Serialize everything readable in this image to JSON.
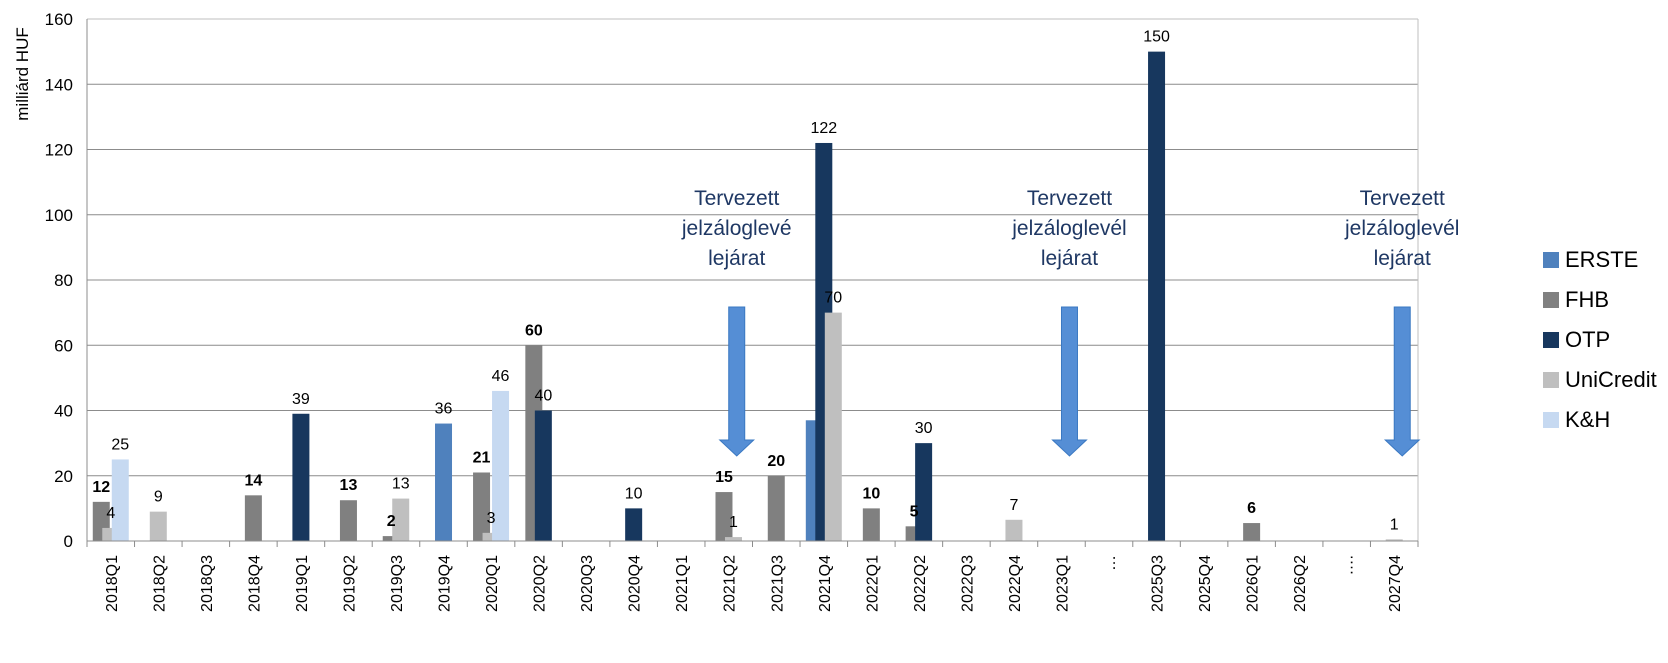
{
  "chart_data": {
    "type": "bar",
    "title": "",
    "xlabel": "",
    "ylabel": "milliárd HUF",
    "ylim": [
      0,
      160
    ],
    "yticks": [
      0,
      20,
      40,
      60,
      80,
      100,
      120,
      140,
      160
    ],
    "grid": true,
    "legend_position": "right",
    "categories": [
      "2018Q1",
      "2018Q2",
      "2018Q3",
      "2018Q4",
      "2019Q1",
      "2019Q2",
      "2019Q3",
      "2019Q4",
      "2020Q1",
      "2020Q2",
      "2020Q3",
      "2020Q4",
      "2021Q1",
      "2021Q2",
      "2021Q3",
      "2021Q4",
      "2022Q1",
      "2022Q2",
      "2022Q3",
      "2022Q4",
      "2023Q1",
      "…",
      "2025Q3",
      "2025Q4",
      "2026Q1",
      "2026Q2",
      "….",
      "2027Q4"
    ],
    "series": [
      {
        "name": "ERSTE",
        "color": "#4f81bd",
        "values": [
          null,
          null,
          null,
          null,
          null,
          null,
          null,
          36,
          null,
          null,
          null,
          null,
          null,
          null,
          null,
          37,
          null,
          null,
          null,
          null,
          null,
          null,
          null,
          null,
          null,
          null,
          null,
          null
        ],
        "labels": [
          null,
          null,
          null,
          null,
          null,
          null,
          null,
          "36",
          null,
          null,
          null,
          null,
          null,
          null,
          null,
          null,
          null,
          null,
          null,
          null,
          null,
          null,
          null,
          null,
          null,
          null,
          null,
          null
        ]
      },
      {
        "name": "FHB",
        "color": "#808080",
        "values": [
          12,
          null,
          null,
          14,
          null,
          12.5,
          1.5,
          null,
          21,
          60,
          null,
          null,
          null,
          15,
          20,
          null,
          10,
          4.5,
          null,
          null,
          null,
          null,
          null,
          null,
          5.5,
          null,
          null,
          null
        ],
        "labels": [
          "12",
          null,
          null,
          "14",
          null,
          "13",
          "2",
          null,
          "21",
          "60",
          null,
          null,
          null,
          "15",
          "20",
          null,
          "10",
          "5",
          null,
          null,
          null,
          null,
          null,
          null,
          "6",
          null,
          null,
          null
        ]
      },
      {
        "name": "OTP",
        "color": "#17375e",
        "values": [
          null,
          null,
          null,
          null,
          39,
          null,
          null,
          null,
          null,
          40,
          null,
          10,
          null,
          null,
          null,
          122,
          null,
          30,
          null,
          null,
          null,
          null,
          150,
          null,
          null,
          null,
          null,
          null
        ],
        "labels": [
          null,
          null,
          null,
          null,
          "39",
          null,
          null,
          null,
          null,
          "40",
          null,
          "10",
          null,
          null,
          null,
          "122",
          null,
          "30",
          null,
          null,
          null,
          null,
          "150",
          null,
          null,
          null,
          null,
          null
        ]
      },
      {
        "name": "UniCredit",
        "color": "#bfbfbf",
        "values": [
          4,
          9,
          null,
          null,
          null,
          null,
          13,
          null,
          2.5,
          null,
          null,
          null,
          null,
          1.2,
          null,
          70,
          null,
          null,
          null,
          6.5,
          null,
          null,
          null,
          null,
          null,
          null,
          null,
          0.5
        ],
        "labels": [
          "4",
          "9",
          null,
          null,
          null,
          null,
          "13",
          null,
          "3",
          null,
          null,
          null,
          null,
          "1",
          null,
          "70",
          null,
          null,
          null,
          "7",
          null,
          null,
          null,
          null,
          null,
          null,
          null,
          "1"
        ]
      },
      {
        "name": "K&H",
        "color": "#c6d9f1",
        "values": [
          25,
          null,
          null,
          null,
          null,
          null,
          null,
          null,
          46,
          null,
          null,
          null,
          null,
          null,
          null,
          null,
          null,
          null,
          null,
          null,
          null,
          null,
          null,
          null,
          null,
          null,
          null,
          null
        ],
        "labels": [
          "25",
          null,
          null,
          null,
          null,
          null,
          null,
          null,
          "46",
          null,
          null,
          null,
          null,
          null,
          null,
          null,
          null,
          null,
          null,
          null,
          null,
          null,
          null,
          null,
          null,
          null,
          null,
          null
        ]
      }
    ],
    "annotations": [
      {
        "lines": [
          "Tervezett",
          "jelzáloglevé",
          "lejárat"
        ],
        "category": "2021Q2"
      },
      {
        "lines": [
          "Tervezett",
          "jelzáloglevél",
          "lejárat"
        ],
        "category": "2023Q1"
      },
      {
        "lines": [
          "Tervezett",
          "jelzáloglevél",
          "lejárat"
        ],
        "category": "2027Q4"
      }
    ]
  }
}
